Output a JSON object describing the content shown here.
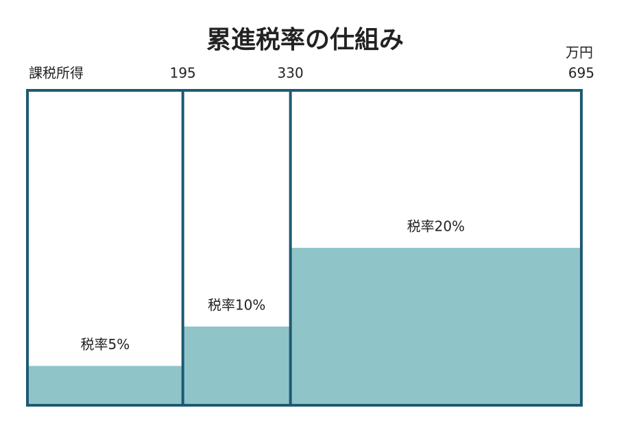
{
  "chart_data": {
    "type": "histogram",
    "title": "累進税率の仕組み",
    "x_label": "課税所得",
    "x_unit": "万円",
    "bins": [
      0,
      195,
      330,
      695
    ],
    "values": [
      5,
      10,
      20
    ],
    "value_labels": [
      "税率5%",
      "税率10%",
      "税率20%"
    ],
    "xlim": [
      0,
      695
    ],
    "xticks": [
      195,
      330,
      695
    ],
    "ylim": [
      0,
      40
    ],
    "color": "#8fc5c9",
    "edge_color": "#1d5a72"
  }
}
